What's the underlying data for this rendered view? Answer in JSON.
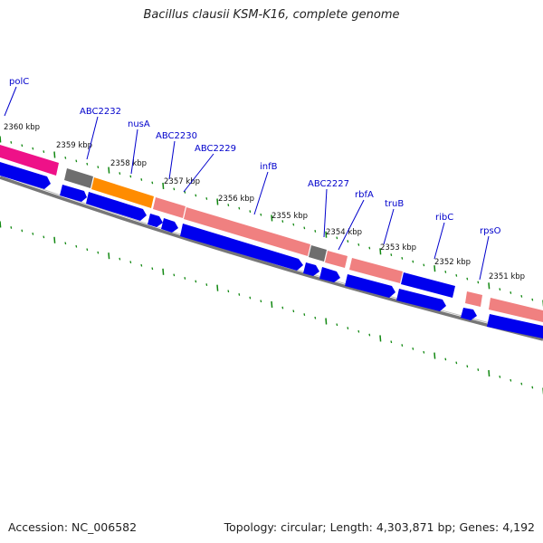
{
  "title": "Bacillus clausii KSM-K16, complete genome",
  "footer": {
    "accession": "Accession: NC_006582",
    "topology": "Topology: circular; Length: 4,303,871 bp; Genes: 4,192"
  },
  "colors": {
    "gene_blue": "#0000ee",
    "rrna_pink": "#f08080",
    "trna_gray": "#707070",
    "orange": "#ff8c00",
    "magenta": "#ee1188",
    "tick_green": "#118811",
    "label_blue": "#0000cc"
  },
  "kbp_labels": [
    "2360 kbp",
    "2359 kbp",
    "2358 kbp",
    "2357 kbp",
    "2356 kbp",
    "2355 kbp",
    "2354 kbp",
    "2353 kbp",
    "2352 kbp",
    "2351 kbp"
  ],
  "gene_labels": [
    "polC",
    "ABC2232",
    "nusA",
    "ABC2230",
    "ABC2229",
    "infB",
    "ABC2227",
    "rbfA",
    "truB",
    "ribC",
    "rpsO"
  ]
}
